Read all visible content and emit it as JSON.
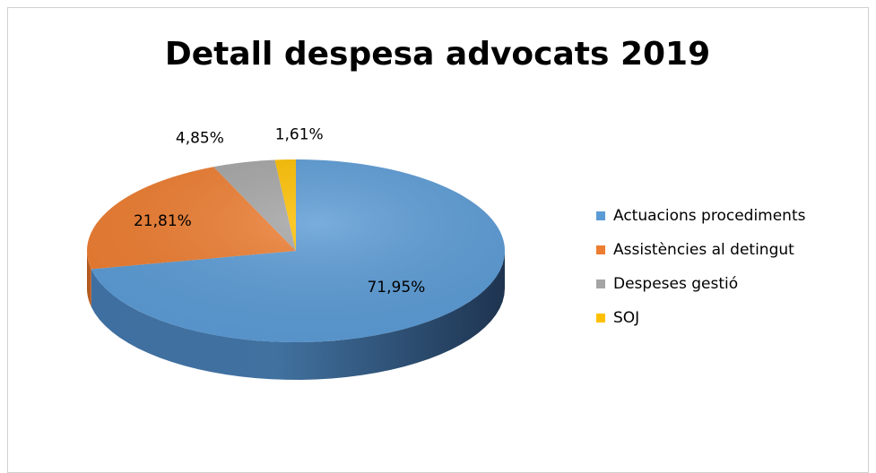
{
  "chart_data": {
    "type": "pie",
    "title": "Detall despesa advocats 2019",
    "categories": [
      "Actuacions procediments",
      "Assistències al detingut",
      "Despeses gestió",
      "SOJ"
    ],
    "values": [
      71.95,
      21.81,
      4.85,
      1.61
    ],
    "data_labels": [
      "71,95%",
      "21,81%",
      "4,85%",
      "1,61%"
    ],
    "colors": [
      "#5B9BD5",
      "#ED7D31",
      "#A5A5A5",
      "#FFC000"
    ],
    "legend_position": "right",
    "style": "3d"
  }
}
